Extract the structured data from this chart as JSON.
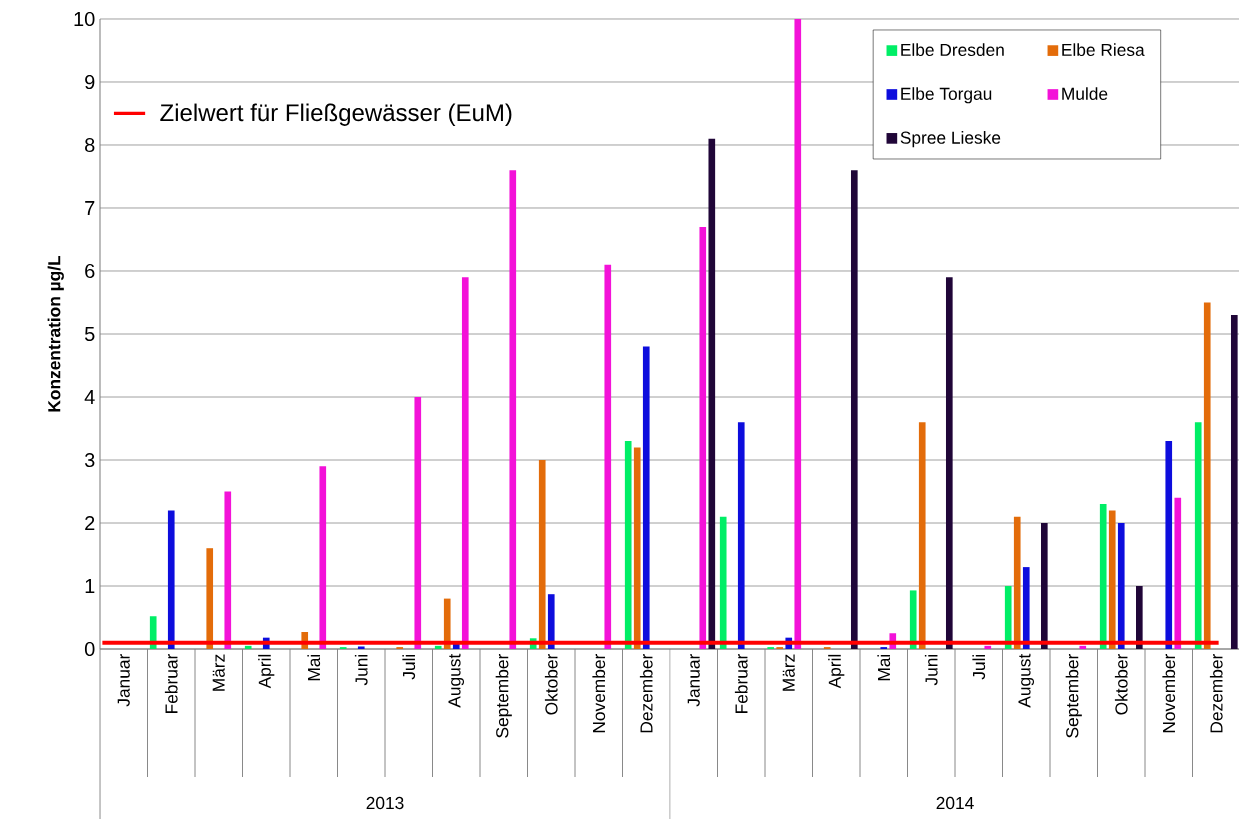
{
  "chart_data": {
    "type": "bar",
    "ylabel": "Konzentration µg/L",
    "categories": [
      "Januar",
      "Februar",
      "März",
      "April",
      "Mai",
      "Juni",
      "Juli",
      "August",
      "September",
      "Oktober",
      "November",
      "Dezember",
      "Januar",
      "Februar",
      "März",
      "April",
      "Mai",
      "Juni",
      "Juli",
      "August",
      "September",
      "Oktober",
      "November",
      "Dezember"
    ],
    "series": [
      {
        "name": "Elbe Dresden",
        "color": "#00ee66",
        "values": [
          null,
          0.52,
          null,
          0.05,
          null,
          0.03,
          null,
          0.05,
          null,
          0.17,
          null,
          3.3,
          null,
          2.1,
          0.03,
          null,
          null,
          0.93,
          null,
          1.0,
          null,
          2.3,
          null,
          3.6
        ]
      },
      {
        "name": "Elbe Riesa",
        "color": "#e36c0a",
        "values": [
          null,
          null,
          1.6,
          null,
          0.27,
          null,
          0.03,
          0.8,
          null,
          3.0,
          null,
          3.2,
          null,
          null,
          0.03,
          0.03,
          null,
          3.6,
          null,
          2.1,
          null,
          2.2,
          null,
          5.5
        ]
      },
      {
        "name": "Elbe Torgau",
        "color": "#0d0ddd",
        "values": [
          null,
          2.2,
          null,
          0.18,
          null,
          0.04,
          null,
          0.08,
          null,
          0.87,
          null,
          4.8,
          null,
          3.6,
          0.18,
          null,
          0.03,
          null,
          null,
          1.3,
          null,
          2.0,
          3.3,
          null
        ]
      },
      {
        "name": "Mulde",
        "color": "#f312d8",
        "values": [
          null,
          null,
          2.5,
          null,
          2.9,
          null,
          4.0,
          5.9,
          7.6,
          null,
          6.1,
          null,
          6.7,
          null,
          10,
          null,
          0.25,
          null,
          0.05,
          null,
          0.05,
          null,
          2.4,
          null
        ]
      },
      {
        "name": "Spree Lieske",
        "color": "#200638",
        "values": [
          null,
          null,
          null,
          null,
          null,
          null,
          null,
          null,
          null,
          null,
          null,
          null,
          8.1,
          null,
          null,
          7.6,
          null,
          5.9,
          null,
          2.0,
          null,
          1.0,
          null,
          5.3
        ]
      }
    ],
    "ylim": [
      0,
      10
    ],
    "yticks": [
      0,
      1,
      2,
      3,
      4,
      5,
      6,
      7,
      8,
      9,
      10
    ],
    "grid": "y",
    "legend": "top right",
    "ref_lines": [
      {
        "axis": "y",
        "value": 0.1,
        "label": "Zielwert für Fließgewässer (EuM)",
        "color": "#ff0000"
      }
    ],
    "annotations": [
      "2013",
      "2014"
    ]
  }
}
